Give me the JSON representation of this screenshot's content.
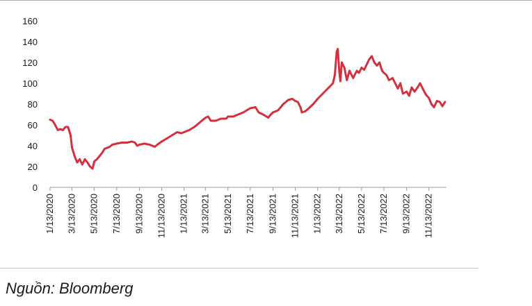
{
  "chart_data": {
    "type": "line",
    "title": "",
    "xlabel": "",
    "ylabel": "",
    "ylim": [
      0,
      160
    ],
    "yticks": [
      0,
      20,
      40,
      60,
      80,
      100,
      120,
      140,
      160
    ],
    "x_tick_labels": [
      "1/13/2020",
      "3/13/2020",
      "5/13/2020",
      "7/13/2020",
      "9/13/2020",
      "11/13/2020",
      "1/13/2021",
      "3/13/2021",
      "5/13/2021",
      "7/13/2021",
      "9/13/2021",
      "11/13/2021",
      "1/13/2022",
      "3/13/2022",
      "5/13/2022",
      "7/13/2022",
      "9/13/2022",
      "11/13/2022"
    ],
    "grid": false,
    "series": [
      {
        "color": "#d4303c",
        "points": [
          [
            "2020-01-13",
            65
          ],
          [
            "2020-01-20",
            64
          ],
          [
            "2020-01-27",
            60
          ],
          [
            "2020-02-03",
            55
          ],
          [
            "2020-02-10",
            56
          ],
          [
            "2020-02-17",
            55
          ],
          [
            "2020-02-24",
            58
          ],
          [
            "2020-03-02",
            58
          ],
          [
            "2020-03-09",
            50
          ],
          [
            "2020-03-13",
            38
          ],
          [
            "2020-03-20",
            30
          ],
          [
            "2020-03-27",
            24
          ],
          [
            "2020-04-03",
            27
          ],
          [
            "2020-04-10",
            22
          ],
          [
            "2020-04-17",
            27
          ],
          [
            "2020-04-24",
            24
          ],
          [
            "2020-05-01",
            20
          ],
          [
            "2020-05-08",
            18
          ],
          [
            "2020-05-13",
            25
          ],
          [
            "2020-05-20",
            27
          ],
          [
            "2020-05-27",
            30
          ],
          [
            "2020-06-03",
            33
          ],
          [
            "2020-06-10",
            37
          ],
          [
            "2020-06-17",
            38
          ],
          [
            "2020-06-24",
            39
          ],
          [
            "2020-07-01",
            41
          ],
          [
            "2020-07-13",
            42
          ],
          [
            "2020-07-27",
            43
          ],
          [
            "2020-08-10",
            43
          ],
          [
            "2020-08-24",
            44
          ],
          [
            "2020-09-01",
            43
          ],
          [
            "2020-09-07",
            40
          ],
          [
            "2020-09-13",
            41
          ],
          [
            "2020-09-27",
            42
          ],
          [
            "2020-10-11",
            41
          ],
          [
            "2020-10-25",
            39
          ],
          [
            "2020-11-01",
            41
          ],
          [
            "2020-11-13",
            44
          ],
          [
            "2020-11-27",
            47
          ],
          [
            "2020-12-11",
            50
          ],
          [
            "2020-12-25",
            53
          ],
          [
            "2021-01-06",
            52
          ],
          [
            "2021-01-13",
            53
          ],
          [
            "2021-01-27",
            55
          ],
          [
            "2021-02-10",
            58
          ],
          [
            "2021-02-24",
            62
          ],
          [
            "2021-03-06",
            65
          ],
          [
            "2021-03-13",
            67
          ],
          [
            "2021-03-20",
            68
          ],
          [
            "2021-03-27",
            64
          ],
          [
            "2021-04-10",
            64
          ],
          [
            "2021-04-24",
            66
          ],
          [
            "2021-05-08",
            66
          ],
          [
            "2021-05-13",
            68
          ],
          [
            "2021-05-27",
            68
          ],
          [
            "2021-06-10",
            70
          ],
          [
            "2021-06-24",
            72
          ],
          [
            "2021-07-08",
            75
          ],
          [
            "2021-07-13",
            76
          ],
          [
            "2021-07-27",
            77
          ],
          [
            "2021-08-05",
            72
          ],
          [
            "2021-08-17",
            70
          ],
          [
            "2021-08-31",
            67
          ],
          [
            "2021-09-07",
            70
          ],
          [
            "2021-09-13",
            72
          ],
          [
            "2021-09-27",
            74
          ],
          [
            "2021-10-11",
            80
          ],
          [
            "2021-10-25",
            84
          ],
          [
            "2021-11-05",
            85
          ],
          [
            "2021-11-13",
            83
          ],
          [
            "2021-11-20",
            82
          ],
          [
            "2021-11-27",
            77
          ],
          [
            "2021-12-01",
            72
          ],
          [
            "2021-12-10",
            73
          ],
          [
            "2021-12-20",
            76
          ],
          [
            "2022-01-01",
            80
          ],
          [
            "2022-01-13",
            85
          ],
          [
            "2022-01-27",
            90
          ],
          [
            "2022-02-10",
            95
          ],
          [
            "2022-02-24",
            100
          ],
          [
            "2022-03-01",
            108
          ],
          [
            "2022-03-06",
            130
          ],
          [
            "2022-03-09",
            133
          ],
          [
            "2022-03-13",
            112
          ],
          [
            "2022-03-16",
            102
          ],
          [
            "2022-03-20",
            120
          ],
          [
            "2022-03-27",
            115
          ],
          [
            "2022-04-03",
            103
          ],
          [
            "2022-04-10",
            112
          ],
          [
            "2022-04-20",
            105
          ],
          [
            "2022-04-30",
            112
          ],
          [
            "2022-05-06",
            110
          ],
          [
            "2022-05-13",
            115
          ],
          [
            "2022-05-20",
            113
          ],
          [
            "2022-05-27",
            118
          ],
          [
            "2022-06-03",
            123
          ],
          [
            "2022-06-10",
            126
          ],
          [
            "2022-06-17",
            120
          ],
          [
            "2022-06-24",
            117
          ],
          [
            "2022-07-01",
            120
          ],
          [
            "2022-07-08",
            112
          ],
          [
            "2022-07-13",
            110
          ],
          [
            "2022-07-20",
            108
          ],
          [
            "2022-07-27",
            103
          ],
          [
            "2022-08-06",
            105
          ],
          [
            "2022-08-13",
            100
          ],
          [
            "2022-08-20",
            95
          ],
          [
            "2022-08-27",
            100
          ],
          [
            "2022-09-03",
            90
          ],
          [
            "2022-09-13",
            92
          ],
          [
            "2022-09-20",
            88
          ],
          [
            "2022-09-27",
            96
          ],
          [
            "2022-10-05",
            92
          ],
          [
            "2022-10-13",
            96
          ],
          [
            "2022-10-20",
            100
          ],
          [
            "2022-10-27",
            95
          ],
          [
            "2022-11-05",
            89
          ],
          [
            "2022-11-13",
            86
          ],
          [
            "2022-11-20",
            80
          ],
          [
            "2022-11-27",
            77
          ],
          [
            "2022-12-05",
            83
          ],
          [
            "2022-12-13",
            82
          ],
          [
            "2022-12-20",
            78
          ],
          [
            "2022-12-27",
            82
          ]
        ]
      }
    ]
  },
  "source_note": "Nguồn: Bloomberg"
}
